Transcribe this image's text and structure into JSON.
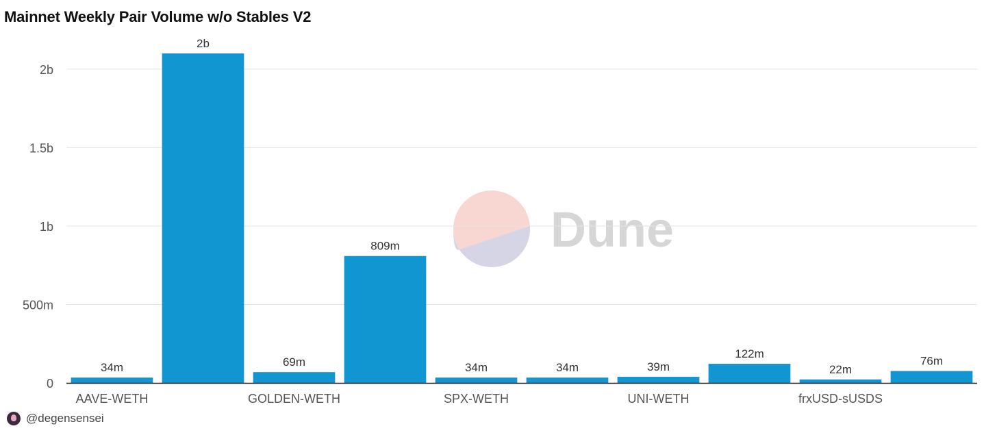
{
  "title": "Mainnet Weekly Pair Volume w/o Stables V2",
  "footer": {
    "author": "@degensensei",
    "avatar_icon": "avatar-icon"
  },
  "watermark": {
    "text": "Dune",
    "logo_colors": [
      "#f8d7d2",
      "#d5d5e6"
    ],
    "text_color": "#d6d6d6"
  },
  "colors": {
    "bar": "#1296d2",
    "grid": "#e4e4e4",
    "axis": "#222222"
  },
  "chart_data": {
    "type": "bar",
    "categories": [
      "AAVE-WETH",
      "",
      "GOLDEN-WETH",
      "",
      "SPX-WETH",
      "",
      "UNI-WETH",
      "",
      "frxUSD-sUSDS",
      ""
    ],
    "values": [
      34000000,
      2100000000,
      69000000,
      809000000,
      34000000,
      34000000,
      39000000,
      122000000,
      22000000,
      76000000
    ],
    "data_labels": [
      "34m",
      "2b",
      "69m",
      "809m",
      "34m",
      "34m",
      "39m",
      "122m",
      "22m",
      "76m"
    ],
    "x_tick_labels": [
      "AAVE-WETH",
      "GOLDEN-WETH",
      "SPX-WETH",
      "UNI-WETH",
      "frxUSD-sUSDS"
    ],
    "y_ticks": [
      0,
      500000000,
      1000000000,
      1500000000,
      2000000000
    ],
    "y_tick_labels": [
      "0",
      "500m",
      "1b",
      "1.5b",
      "2b"
    ],
    "ylim": [
      0,
      2100000000
    ],
    "grid": true,
    "legend": "none",
    "title": "Mainnet Weekly Pair Volume w/o Stables V2",
    "xlabel": "",
    "ylabel": ""
  }
}
